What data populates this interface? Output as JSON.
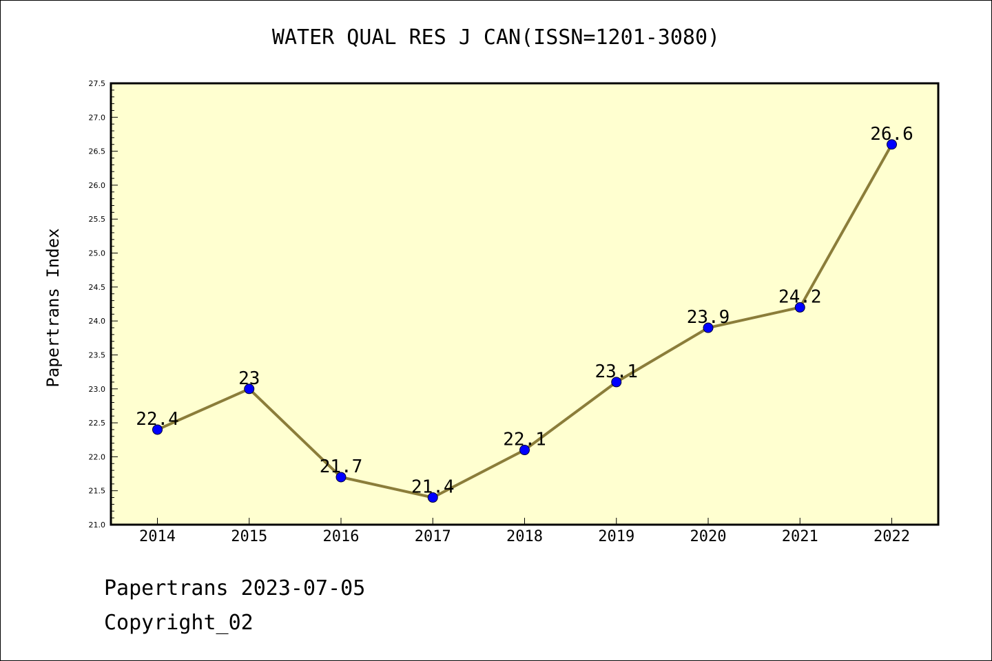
{
  "title": "WATER QUAL RES J CAN(ISSN=1201-3080)",
  "footer": {
    "source": "Papertrans 2023-07-05",
    "copyright": "Copyright_02"
  },
  "colors": {
    "plot_background": "#ffffd0",
    "line": "#8b7d3a",
    "marker": "#0000ff",
    "axis": "#000000"
  },
  "chart_data": {
    "type": "line",
    "title": "WATER QUAL RES J CAN(ISSN=1201-3080)",
    "xlabel": "",
    "ylabel": "Papertrans Index",
    "categories": [
      "2014",
      "2015",
      "2016",
      "2017",
      "2018",
      "2019",
      "2020",
      "2021",
      "2022"
    ],
    "series": [
      {
        "values": [
          22.4,
          23.0,
          21.7,
          21.4,
          22.1,
          23.1,
          23.9,
          24.2,
          26.6
        ],
        "labels": [
          "22.4",
          "23",
          "21.7",
          "21.4",
          "22.1",
          "23.1",
          "23.9",
          "24.2",
          "26.6"
        ]
      }
    ],
    "ylim": [
      21.0,
      27.5
    ],
    "yticks": [
      "21.0",
      "21.5",
      "22.0",
      "22.5",
      "23.0",
      "23.5",
      "24.0",
      "24.5",
      "25.0",
      "25.5",
      "26.0",
      "26.5",
      "27.0",
      "27.5"
    ],
    "grid": false,
    "legend": "none"
  }
}
